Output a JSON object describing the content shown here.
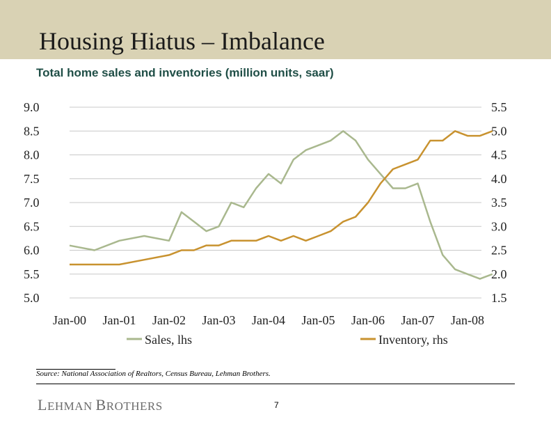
{
  "slide": {
    "title": "Housing Hiatus – Imbalance",
    "subtitle": "Total home sales and inventories (million units, saar)",
    "source": "Source: National Association of Realtors, Census Bureau, Lehman Brothers.",
    "logo_text": "Lehman Brothers",
    "page_number": "7"
  },
  "colors": {
    "header_band": "#d9d2b4",
    "subtitle": "#1f4e46",
    "sales": "#a9b88e",
    "inventory": "#c8922f"
  },
  "chart_data": {
    "type": "line",
    "title": "Total home sales and inventories (million units, saar)",
    "x_tick_labels": [
      "Jan-00",
      "Jan-01",
      "Jan-02",
      "Jan-03",
      "Jan-04",
      "Jan-05",
      "Jan-06",
      "Jan-07",
      "Jan-08"
    ],
    "left_axis": {
      "ylim": [
        5.0,
        9.0
      ],
      "ticks": [
        "9.0",
        "8.5",
        "8.0",
        "7.5",
        "7.0",
        "6.5",
        "6.0",
        "5.5",
        "5.0"
      ]
    },
    "right_axis": {
      "ylim": [
        1.5,
        5.5
      ],
      "ticks": [
        "5.5",
        "5.0",
        "4.5",
        "4.0",
        "3.5",
        "3.0",
        "2.5",
        "2.0",
        "1.5"
      ]
    },
    "grid": true,
    "legend_position": "bottom",
    "series": [
      {
        "name": "Sales, lhs",
        "axis": "left",
        "color": "#a9b88e",
        "x": [
          "Jan-00",
          "Jul-00",
          "Jan-01",
          "Jul-01",
          "Jan-02",
          "Apr-02",
          "Jul-02",
          "Oct-02",
          "Jan-03",
          "Apr-03",
          "Jul-03",
          "Oct-03",
          "Jan-04",
          "Apr-04",
          "Jul-04",
          "Oct-04",
          "Jan-05",
          "Apr-05",
          "Jul-05",
          "Oct-05",
          "Jan-06",
          "Apr-06",
          "Jul-06",
          "Oct-06",
          "Jan-07",
          "Apr-07",
          "Jul-07",
          "Oct-07",
          "Jan-08",
          "Apr-08",
          "Jul-08"
        ],
        "values": [
          6.1,
          6.0,
          6.2,
          6.3,
          6.2,
          6.8,
          6.6,
          6.4,
          6.5,
          7.0,
          6.9,
          7.3,
          7.6,
          7.4,
          7.9,
          8.1,
          8.2,
          8.3,
          8.5,
          8.3,
          7.9,
          7.6,
          7.3,
          7.3,
          7.4,
          6.6,
          5.9,
          5.6,
          5.5,
          5.4,
          5.5
        ]
      },
      {
        "name": "Inventory, rhs",
        "axis": "right",
        "color": "#c8922f",
        "x": [
          "Jan-00",
          "Jul-00",
          "Jan-01",
          "Jul-01",
          "Jan-02",
          "Apr-02",
          "Jul-02",
          "Oct-02",
          "Jan-03",
          "Apr-03",
          "Jul-03",
          "Oct-03",
          "Jan-04",
          "Apr-04",
          "Jul-04",
          "Oct-04",
          "Jan-05",
          "Apr-05",
          "Jul-05",
          "Oct-05",
          "Jan-06",
          "Apr-06",
          "Jul-06",
          "Oct-06",
          "Jan-07",
          "Apr-07",
          "Jul-07",
          "Oct-07",
          "Jan-08",
          "Apr-08",
          "Jul-08"
        ],
        "values": [
          2.2,
          2.2,
          2.2,
          2.3,
          2.4,
          2.5,
          2.5,
          2.6,
          2.6,
          2.7,
          2.7,
          2.7,
          2.8,
          2.7,
          2.8,
          2.7,
          2.8,
          2.9,
          3.1,
          3.2,
          3.5,
          3.9,
          4.2,
          4.3,
          4.4,
          4.8,
          4.8,
          5.0,
          4.9,
          4.9,
          5.0
        ]
      }
    ]
  }
}
